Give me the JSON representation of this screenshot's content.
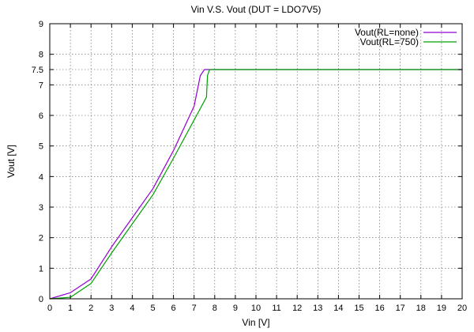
{
  "chart_data": {
    "type": "line",
    "title": "Vin V.S. Vout (DUT = LDO7V5)",
    "xlabel": "Vin [V]",
    "ylabel": "Vout [V]",
    "xlim": [
      0,
      20
    ],
    "ylim": [
      0,
      9
    ],
    "xticks": [
      0,
      1,
      2,
      3,
      4,
      5,
      6,
      7,
      8,
      9,
      10,
      11,
      12,
      13,
      14,
      15,
      16,
      17,
      18,
      19,
      20
    ],
    "yticks": [
      0,
      1,
      2,
      3,
      4,
      5,
      6,
      7,
      7.5,
      8,
      9
    ],
    "xtick_labels": [
      "0",
      "1",
      "2",
      "3",
      "4",
      "5",
      "6",
      "7",
      "8",
      "9",
      "10",
      "11",
      "12",
      "13",
      "14",
      "15",
      "16",
      "17",
      "18",
      "19",
      "20"
    ],
    "ytick_labels": [
      "0",
      "1",
      "2",
      "3",
      "4",
      "5",
      "6",
      "7",
      "7.5",
      "8",
      "9"
    ],
    "grid": true,
    "legend_position": "top-right",
    "series": [
      {
        "name": "Vout(RL=none)",
        "color": "#9400d3",
        "x": [
          0,
          1,
          2,
          3,
          4,
          5,
          6,
          7,
          7.3,
          7.5,
          7.7,
          8,
          9,
          10,
          11,
          12,
          13,
          14,
          15,
          16,
          17,
          18,
          19,
          20
        ],
        "y": [
          0,
          0.2,
          0.65,
          1.7,
          2.65,
          3.6,
          4.85,
          6.3,
          7.3,
          7.5,
          7.5,
          7.5,
          7.5,
          7.5,
          7.5,
          7.5,
          7.5,
          7.5,
          7.5,
          7.5,
          7.5,
          7.5,
          7.5,
          7.5
        ]
      },
      {
        "name": "Vout(RL=750)",
        "color": "#00a000",
        "x": [
          0,
          1,
          2,
          3,
          4,
          5,
          6,
          7,
          7.6,
          7.65,
          7.75,
          8,
          9,
          10,
          11,
          12,
          13,
          14,
          15,
          16,
          17,
          18,
          19,
          20
        ],
        "y": [
          0,
          0.05,
          0.5,
          1.5,
          2.45,
          3.4,
          4.6,
          5.85,
          6.6,
          7.3,
          7.5,
          7.5,
          7.5,
          7.5,
          7.5,
          7.5,
          7.5,
          7.5,
          7.5,
          7.5,
          7.5,
          7.5,
          7.5,
          7.5
        ]
      }
    ]
  }
}
